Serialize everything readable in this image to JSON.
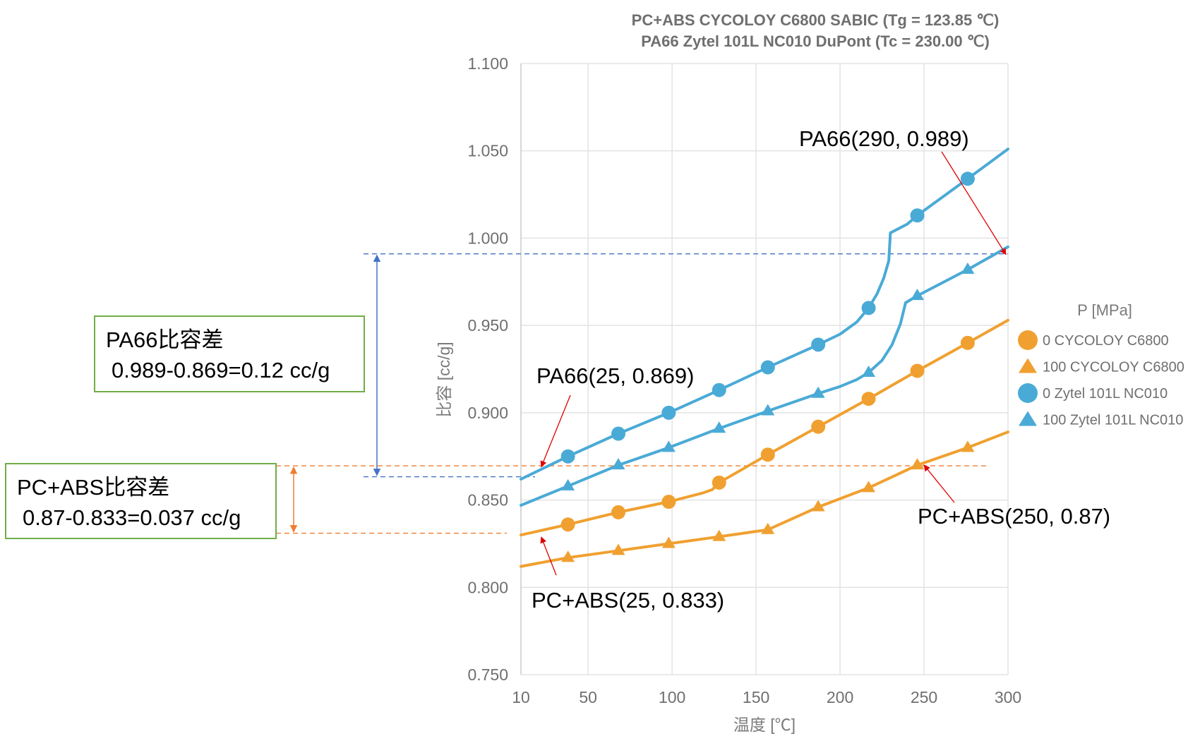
{
  "chart_data": {
    "type": "line",
    "title_lines": [
      "PC+ABS CYCOLOY C6800 SABIC (Tg = 123.85 ℃)",
      "PA66 Zytel 101L NC010 DuPont (Tc = 230.00 ℃)"
    ],
    "xlabel": "温度 [℃]",
    "ylabel": "比容 [cc/g]",
    "xlim": [
      10,
      300
    ],
    "ylim": [
      0.75,
      1.1
    ],
    "xticks": [
      "10",
      "50",
      "100",
      "150",
      "200",
      "250",
      "300"
    ],
    "xtick_values": [
      10,
      50,
      100,
      150,
      200,
      250,
      300
    ],
    "yticks": [
      "0.750",
      "0.800",
      "0.850",
      "0.900",
      "0.950",
      "1.000",
      "1.050",
      "1.100"
    ],
    "ytick_values": [
      0.75,
      0.8,
      0.85,
      0.9,
      0.95,
      1.0,
      1.05,
      1.1
    ],
    "grid": true,
    "legend_title": "P [MPa]",
    "legend_position": "right",
    "series": [
      {
        "name": "0 CYCOLOY C6800",
        "color": "#f0a030",
        "marker": "circle",
        "line": [
          [
            10,
            0.83
          ],
          [
            38,
            0.836
          ],
          [
            68,
            0.843
          ],
          [
            98,
            0.849
          ],
          [
            118,
            0.854
          ],
          [
            124,
            0.856
          ],
          [
            128,
            0.86
          ],
          [
            157,
            0.876
          ],
          [
            187,
            0.892
          ],
          [
            217,
            0.908
          ],
          [
            246,
            0.924
          ],
          [
            276,
            0.94
          ],
          [
            300,
            0.953
          ]
        ],
        "markers": [
          [
            38,
            0.836
          ],
          [
            68,
            0.843
          ],
          [
            98,
            0.849
          ],
          [
            128,
            0.86
          ],
          [
            157,
            0.876
          ],
          [
            187,
            0.892
          ],
          [
            217,
            0.908
          ],
          [
            246,
            0.924
          ],
          [
            276,
            0.94
          ]
        ]
      },
      {
        "name": "100 CYCOLOY C6800",
        "color": "#f0a030",
        "marker": "triangle",
        "line": [
          [
            10,
            0.812
          ],
          [
            38,
            0.817
          ],
          [
            68,
            0.821
          ],
          [
            98,
            0.825
          ],
          [
            128,
            0.829
          ],
          [
            157,
            0.833
          ],
          [
            187,
            0.846
          ],
          [
            217,
            0.857
          ],
          [
            246,
            0.87
          ],
          [
            276,
            0.88
          ],
          [
            300,
            0.889
          ]
        ],
        "markers": [
          [
            38,
            0.817
          ],
          [
            68,
            0.821
          ],
          [
            98,
            0.825
          ],
          [
            128,
            0.829
          ],
          [
            157,
            0.833
          ],
          [
            187,
            0.846
          ],
          [
            217,
            0.857
          ],
          [
            246,
            0.87
          ],
          [
            276,
            0.88
          ]
        ]
      },
      {
        "name": "0 Zytel 101L NC010",
        "color": "#4aaad6",
        "marker": "circle",
        "line": [
          [
            10,
            0.862
          ],
          [
            38,
            0.875
          ],
          [
            68,
            0.888
          ],
          [
            98,
            0.9
          ],
          [
            128,
            0.913
          ],
          [
            157,
            0.926
          ],
          [
            187,
            0.939
          ],
          [
            200,
            0.945
          ],
          [
            210,
            0.952
          ],
          [
            217,
            0.96
          ],
          [
            222,
            0.968
          ],
          [
            226,
            0.977
          ],
          [
            229,
            0.987
          ],
          [
            230,
            1.003
          ],
          [
            240,
            1.008
          ],
          [
            246,
            1.013
          ],
          [
            276,
            1.034
          ],
          [
            300,
            1.051
          ]
        ],
        "markers": [
          [
            38,
            0.875
          ],
          [
            68,
            0.888
          ],
          [
            98,
            0.9
          ],
          [
            128,
            0.913
          ],
          [
            157,
            0.926
          ],
          [
            187,
            0.939
          ],
          [
            217,
            0.96
          ],
          [
            246,
            1.013
          ],
          [
            276,
            1.034
          ]
        ]
      },
      {
        "name": "100 Zytel 101L NC010",
        "color": "#4aaad6",
        "marker": "triangle",
        "line": [
          [
            10,
            0.847
          ],
          [
            38,
            0.858
          ],
          [
            68,
            0.87
          ],
          [
            98,
            0.88
          ],
          [
            128,
            0.891
          ],
          [
            157,
            0.901
          ],
          [
            187,
            0.911
          ],
          [
            200,
            0.915
          ],
          [
            210,
            0.919
          ],
          [
            217,
            0.923
          ],
          [
            225,
            0.93
          ],
          [
            231,
            0.939
          ],
          [
            236,
            0.951
          ],
          [
            239,
            0.963
          ],
          [
            246,
            0.967
          ],
          [
            276,
            0.982
          ],
          [
            300,
            0.995
          ]
        ],
        "markers": [
          [
            38,
            0.858
          ],
          [
            68,
            0.87
          ],
          [
            98,
            0.88
          ],
          [
            128,
            0.891
          ],
          [
            157,
            0.901
          ],
          [
            187,
            0.911
          ],
          [
            217,
            0.923
          ],
          [
            246,
            0.967
          ],
          [
            276,
            0.982
          ]
        ]
      }
    ],
    "annotations": [
      {
        "text": "PA66(290, 0.989)",
        "target": [
          300,
          0.989
        ]
      },
      {
        "text": "PA66(25, 0.869)",
        "target": [
          20,
          0.869
        ]
      },
      {
        "text": "PC+ABS(250, 0.87)",
        "target": [
          250,
          0.87
        ]
      },
      {
        "text": "PC+ABS(25, 0.833)",
        "target": [
          20,
          0.83
        ]
      }
    ],
    "boxes": [
      {
        "line1": "PA66比容差",
        "line2": "0.989-0.869=0.12 cc/g",
        "color": "#70ad47",
        "span": [
          0.869,
          0.991
        ]
      },
      {
        "line1": "PC+ABS比容差",
        "line2": "0.87-0.833=0.037 cc/g",
        "color": "#70ad47",
        "span": [
          0.87,
          0.831
        ]
      }
    ]
  }
}
